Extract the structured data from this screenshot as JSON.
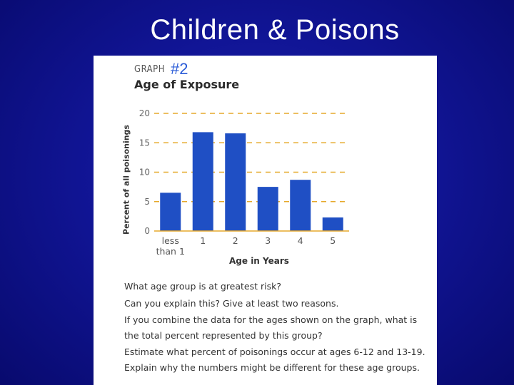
{
  "slide": {
    "title": "Children & Poisons"
  },
  "graph": {
    "label": "GRAPH",
    "number": "#2"
  },
  "chart_data": {
    "type": "bar",
    "title": "Age of Exposure",
    "xlabel": "Age in Years",
    "ylabel": "Percent of all poisonings",
    "categories": [
      "less than 1",
      "1",
      "2",
      "3",
      "4",
      "5"
    ],
    "values": [
      6.5,
      16.8,
      16.6,
      7.5,
      8.7,
      2.3
    ],
    "ylim": [
      0,
      20
    ],
    "yticks": [
      "0",
      "5",
      "10",
      "15",
      "20"
    ],
    "grid": "dashed horizontal",
    "colors": {
      "bar": "#1f4fc4",
      "grid": "#e5a92b"
    }
  },
  "questions": [
    "What age group is at greatest risk?",
    "Can you explain this? Give at least two reasons.",
    "If you combine the data for the ages shown on the graph, what is",
    "the total percent represented by this group?",
    "Estimate what percent of poisonings occur at ages 6-12 and 13-19.",
    "Explain why the numbers might be different for these age groups."
  ]
}
